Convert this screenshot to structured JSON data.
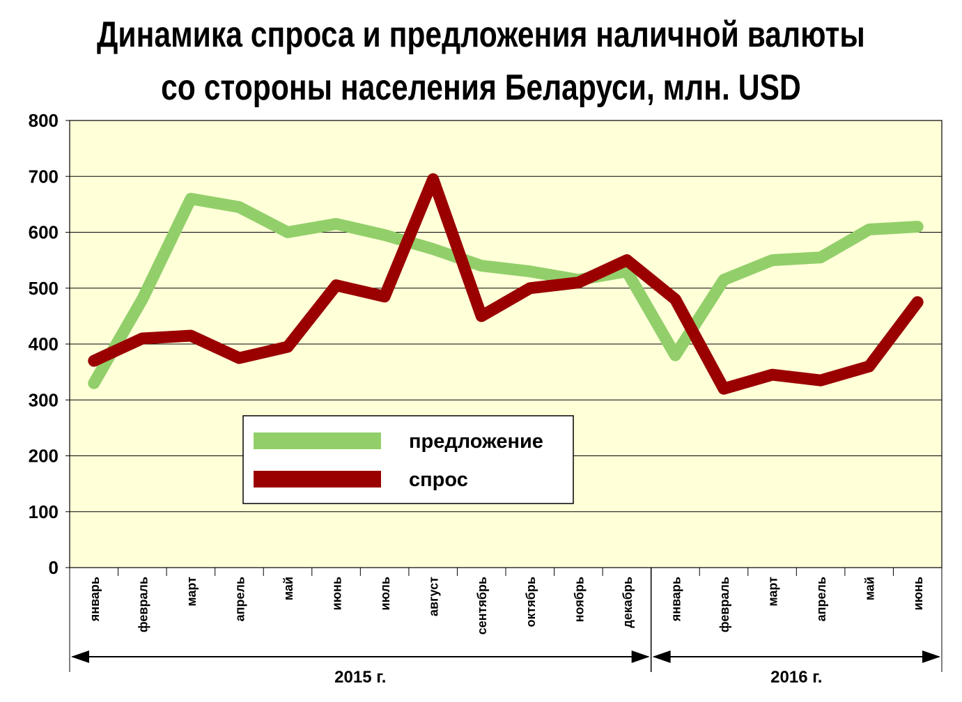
{
  "title_line1": "Динамика спроса и предложения наличной валюты",
  "title_line2": "со стороны населения Беларуси, млн. USD",
  "colors": {
    "plot_bg": "#FFFFD8",
    "supply": "#92CF6A",
    "demand": "#9A0000",
    "grid": "#000000"
  },
  "chart_data": {
    "type": "line",
    "title": "Динамика спроса и предложения наличной валюты со стороны населения Беларуси, млн. USD",
    "xlabel": "",
    "ylabel": "",
    "ylim": [
      0,
      800
    ],
    "yticks": [
      "0",
      "100",
      "200",
      "300",
      "400",
      "500",
      "600",
      "700",
      "800"
    ],
    "categories": [
      "январь",
      "февраль",
      "март",
      "апрель",
      "май",
      "июнь",
      "июль",
      "август",
      "сентябрь",
      "октябрь",
      "ноябрь",
      "декабрь",
      "январь",
      "февраль",
      "март",
      "апрель",
      "май",
      "июнь"
    ],
    "year_groups": [
      {
        "label": "2015 г.",
        "count": 12
      },
      {
        "label": "2016 г.",
        "count": 6
      }
    ],
    "series": [
      {
        "name": "предложение",
        "color": "#92CF6A",
        "values": [
          330,
          480,
          660,
          645,
          600,
          615,
          595,
          570,
          540,
          530,
          515,
          530,
          380,
          515,
          550,
          555,
          605,
          610
        ]
      },
      {
        "name": "спрос",
        "color": "#9A0000",
        "values": [
          370,
          410,
          415,
          375,
          395,
          505,
          485,
          695,
          450,
          500,
          510,
          550,
          480,
          320,
          345,
          335,
          360,
          475
        ]
      }
    ],
    "grid": true,
    "legend": "center-left"
  }
}
